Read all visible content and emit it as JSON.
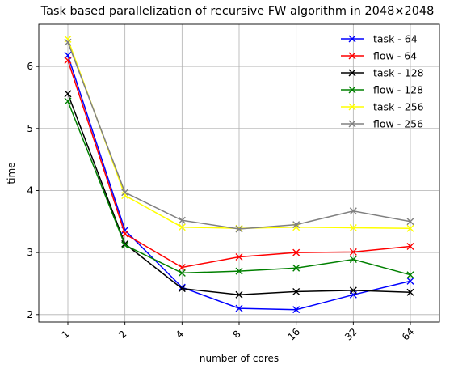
{
  "chart_data": {
    "type": "line",
    "title": "Task based parallelization of recursive FW algorithm in 2048×2048",
    "xlabel": "number of cores",
    "ylabel": "time",
    "categories": [
      "1",
      "2",
      "4",
      "8",
      "16",
      "32",
      "64"
    ],
    "ylim": [
      1.88,
      6.68
    ],
    "yticks": [
      2,
      3,
      4,
      5,
      6
    ],
    "ytick_labels": [
      "2",
      "3",
      "4",
      "5",
      "6"
    ],
    "grid": true,
    "legend_position": "top-right",
    "marker": "x",
    "series": [
      {
        "name": "task - 64",
        "color": "#0000ff",
        "values": [
          6.18,
          3.36,
          2.44,
          2.1,
          2.08,
          2.32,
          2.54
        ]
      },
      {
        "name": "flow - 64",
        "color": "#ff0000",
        "values": [
          6.1,
          3.3,
          2.76,
          2.93,
          3.0,
          3.01,
          3.1
        ]
      },
      {
        "name": "task - 128",
        "color": "#000000",
        "values": [
          5.56,
          3.14,
          2.42,
          2.32,
          2.37,
          2.39,
          2.36
        ]
      },
      {
        "name": "flow - 128",
        "color": "#008000",
        "values": [
          5.44,
          3.12,
          2.67,
          2.7,
          2.75,
          2.89,
          2.64
        ]
      },
      {
        "name": "task - 256",
        "color": "#ffff00",
        "values": [
          6.44,
          3.92,
          3.41,
          3.39,
          3.41,
          3.4,
          3.39
        ]
      },
      {
        "name": "flow - 256",
        "color": "#808080",
        "values": [
          6.39,
          3.97,
          3.52,
          3.38,
          3.45,
          3.67,
          3.5
        ]
      }
    ]
  }
}
